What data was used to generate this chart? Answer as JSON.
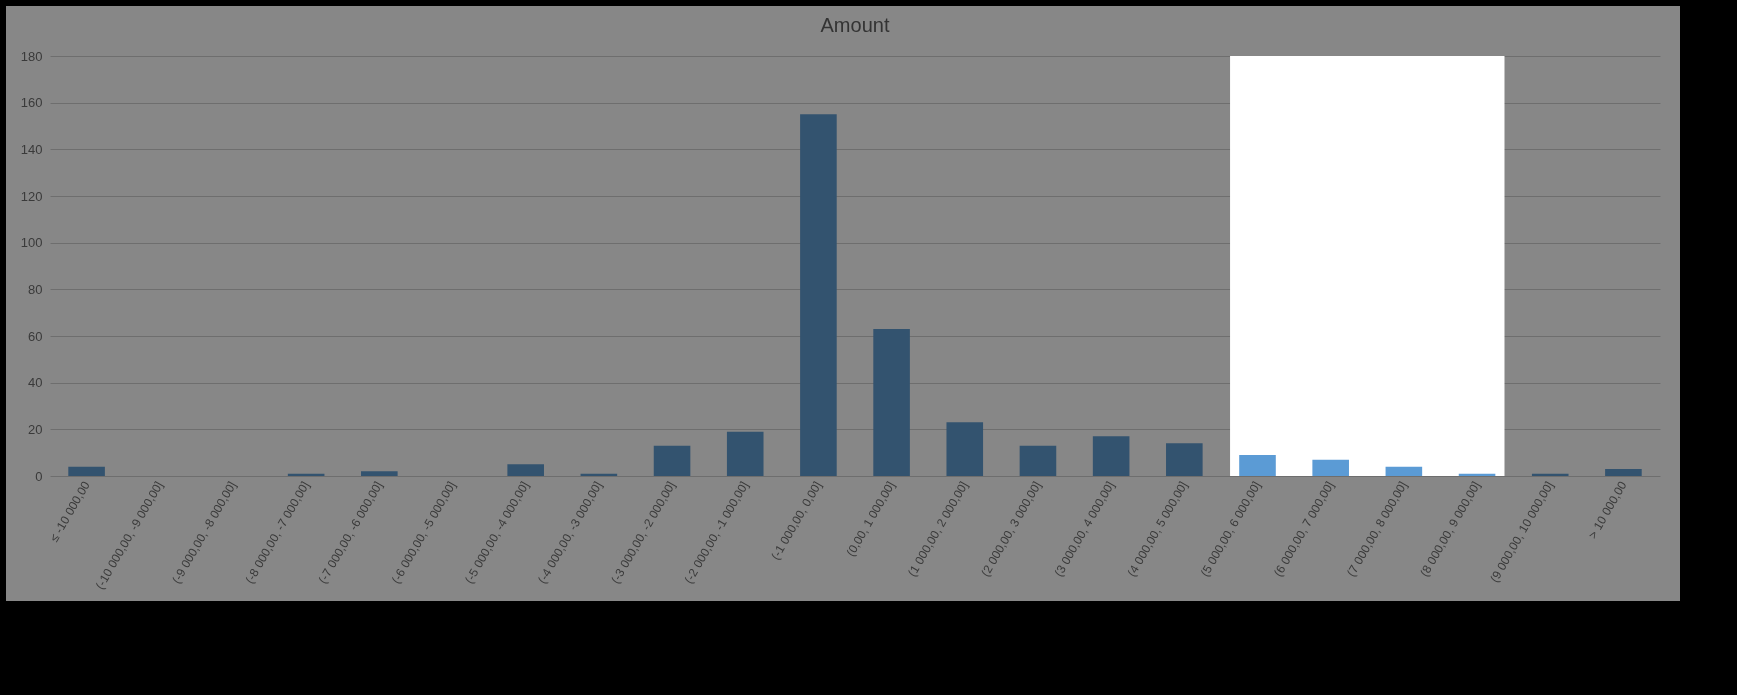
{
  "chart_data": {
    "type": "bar",
    "title": "Amount",
    "categories": [
      "≤ -10 000,00",
      "(-10 000,00, -9 000,00]",
      "(-9 000,00, -8 000,00]",
      "(-8 000,00, -7 000,00]",
      "(-7 000,00, -6 000,00]",
      "(-6 000,00, -5 000,00]",
      "(-5 000,00, -4 000,00]",
      "(-4 000,00, -3 000,00]",
      "(-3 000,00, -2 000,00]",
      "(-2 000,00, -1 000,00]",
      "(-1 000,00, 0,00]",
      "(0,00, 1 000,00]",
      "(1 000,00, 2 000,00]",
      "(2 000,00, 3 000,00]",
      "(3 000,00, 4 000,00]",
      "(4 000,00, 5 000,00]",
      "(5 000,00, 6 000,00]",
      "(6 000,00, 7 000,00]",
      "(7 000,00, 8 000,00]",
      "(8 000,00, 9 000,00]",
      "(9 000,00, 10 000,00]",
      "> 10 000,00"
    ],
    "values": [
      4,
      0,
      0,
      1,
      2,
      0,
      5,
      1,
      13,
      19,
      155,
      63,
      23,
      13,
      17,
      14,
      9,
      7,
      4,
      1,
      1,
      3
    ],
    "colors": [
      "#33536f",
      "#33536f",
      "#33536f",
      "#33536f",
      "#33536f",
      "#33536f",
      "#33536f",
      "#33536f",
      "#33536f",
      "#33536f",
      "#33536f",
      "#33536f",
      "#33536f",
      "#33536f",
      "#33536f",
      "#33536f",
      "#5b9bd5",
      "#5b9bd5",
      "#5b9bd5",
      "#5b9bd5",
      "#33536f",
      "#33536f"
    ],
    "ylim": [
      0,
      180
    ],
    "yticks": [
      0,
      20,
      40,
      60,
      80,
      100,
      120,
      140,
      160,
      180
    ],
    "grid": "y",
    "legend": false,
    "bands": [
      {
        "axis": "x",
        "from": "(5 000,00, 6 000,00]",
        "to": "(8 000,00, 9 000,00]",
        "color": "#ffffff"
      }
    ]
  }
}
